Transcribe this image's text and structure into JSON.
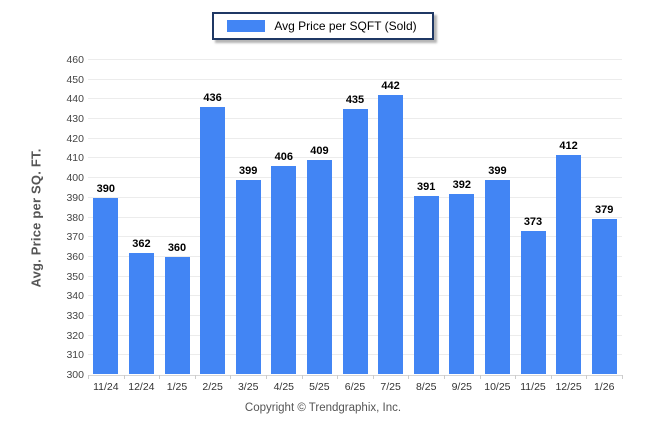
{
  "legend": {
    "label": "Avg Price per SQFT (Sold)",
    "swatch_color": "#4285F4"
  },
  "footer": {
    "copyright": "Copyright © Trendgraphix, Inc."
  },
  "colors": {
    "bar": "#4285F4",
    "legend_border": "#1F3864",
    "gridline": "#ECECEC",
    "axis_line": "#D6D6D6",
    "tick_text": "#444444",
    "value_text": "#000000",
    "axis_title_text": "#555555"
  },
  "chart_data": {
    "type": "bar",
    "title": "",
    "xlabel": "",
    "ylabel": "Avg. Price per SQ. FT.",
    "categories": [
      "11/24",
      "12/24",
      "1/25",
      "2/25",
      "3/25",
      "4/25",
      "5/25",
      "6/25",
      "7/25",
      "8/25",
      "9/25",
      "10/25",
      "11/25",
      "12/25",
      "1/26"
    ],
    "values": [
      390,
      362,
      360,
      436,
      399,
      406,
      409,
      435,
      442,
      391,
      392,
      399,
      373,
      412,
      379
    ],
    "series_name": "Avg Price per SQFT (Sold)",
    "ylim": [
      300,
      460
    ],
    "ytick_step": 10,
    "grid": true,
    "legend_position": "top-center"
  }
}
